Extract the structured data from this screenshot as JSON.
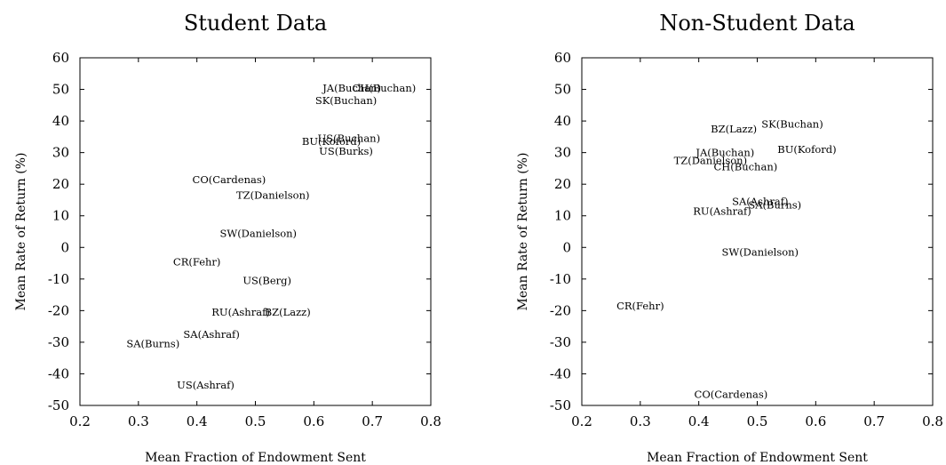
{
  "chart_data": [
    {
      "type": "scatter",
      "title": "Student Data",
      "xlabel": "Mean Fraction of Endowment Sent",
      "ylabel": "Mean Rate of Return (%)",
      "xlim": [
        0.2,
        0.8
      ],
      "ylim": [
        -50,
        60
      ],
      "xticks": [
        "0.2",
        "0.3",
        "0.4",
        "0.5",
        "0.6",
        "0.7",
        "0.8"
      ],
      "yticks": [
        "-50",
        "-40",
        "-30",
        "-20",
        "-10",
        "0",
        "10",
        "20",
        "30",
        "40",
        "50",
        "60"
      ],
      "points": [
        {
          "label": "JA(Buchan)",
          "x": 0.665,
          "y": 50.5
        },
        {
          "label": "CH(Buchan)",
          "x": 0.72,
          "y": 50.5
        },
        {
          "label": "SK(Buchan)",
          "x": 0.655,
          "y": 46.5
        },
        {
          "label": "US(Buchan)",
          "x": 0.66,
          "y": 34.5
        },
        {
          "label": "BU(Koford)",
          "x": 0.63,
          "y": 33.5
        },
        {
          "label": "US(Burks)",
          "x": 0.655,
          "y": 30.5
        },
        {
          "label": "CO(Cardenas)",
          "x": 0.455,
          "y": 21.5
        },
        {
          "label": "TZ(Danielson)",
          "x": 0.53,
          "y": 16.5
        },
        {
          "label": "SW(Danielson)",
          "x": 0.505,
          "y": 4.5
        },
        {
          "label": "CR(Fehr)",
          "x": 0.4,
          "y": -4.5
        },
        {
          "label": "US(Berg)",
          "x": 0.52,
          "y": -10.5
        },
        {
          "label": "RU(Ashraf)",
          "x": 0.475,
          "y": -20.5
        },
        {
          "label": "BZ(Lazz)",
          "x": 0.555,
          "y": -20.5
        },
        {
          "label": "SA(Ashraf)",
          "x": 0.425,
          "y": -27.5
        },
        {
          "label": "SA(Burns)",
          "x": 0.325,
          "y": -30.5
        },
        {
          "label": "US(Ashraf)",
          "x": 0.415,
          "y": -43.5
        }
      ]
    },
    {
      "type": "scatter",
      "title": "Non-Student Data",
      "xlabel": "Mean Fraction of Endowment Sent",
      "ylabel": "Mean Rate of Return (%)",
      "xlim": [
        0.2,
        0.8
      ],
      "ylim": [
        -50,
        60
      ],
      "xticks": [
        "0.2",
        "0.3",
        "0.4",
        "0.5",
        "0.6",
        "0.7",
        "0.8"
      ],
      "yticks": [
        "-50",
        "-40",
        "-30",
        "-20",
        "-10",
        "0",
        "10",
        "20",
        "30",
        "40",
        "50",
        "60"
      ],
      "points": [
        {
          "label": "SK(Buchan)",
          "x": 0.56,
          "y": 39
        },
        {
          "label": "BZ(Lazz)",
          "x": 0.46,
          "y": 37.5
        },
        {
          "label": "BU(Koford)",
          "x": 0.585,
          "y": 31
        },
        {
          "label": "JA(Buchan)",
          "x": 0.445,
          "y": 30
        },
        {
          "label": "TZ(Danielson)",
          "x": 0.42,
          "y": 27.5
        },
        {
          "label": "CH(Buchan)",
          "x": 0.48,
          "y": 25.5
        },
        {
          "label": "SA(Ashraf)",
          "x": 0.505,
          "y": 14.5
        },
        {
          "label": "SA(Burns)",
          "x": 0.53,
          "y": 13.5
        },
        {
          "label": "RU(Ashraf)",
          "x": 0.44,
          "y": 11.5
        },
        {
          "label": "SW(Danielson)",
          "x": 0.505,
          "y": -1.5
        },
        {
          "label": "CR(Fehr)",
          "x": 0.3,
          "y": -18.5
        },
        {
          "label": "CO(Cardenas)",
          "x": 0.455,
          "y": -46.5
        }
      ]
    }
  ]
}
